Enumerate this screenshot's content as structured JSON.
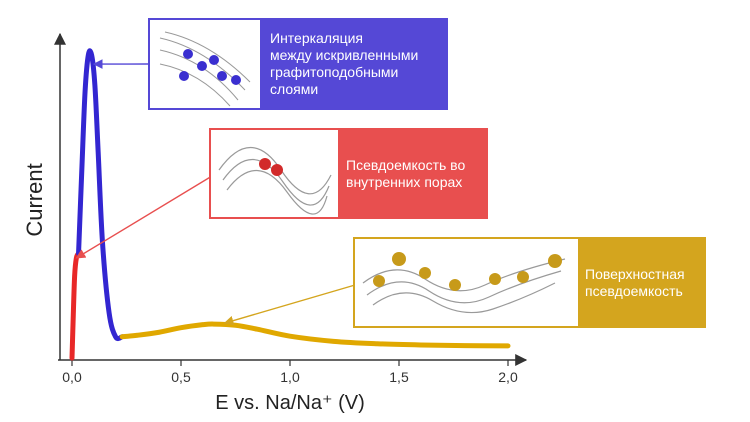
{
  "chart_data": {
    "type": "line",
    "title": "",
    "xlabel": "E vs. Na/Na⁺ (V)",
    "ylabel": "Current",
    "xlim": [
      -0.05,
      2.05
    ],
    "x_ticks": [
      0.0,
      0.5,
      1.0,
      1.5,
      2.0
    ],
    "x_tick_labels": [
      "0,0",
      "0,5",
      "1,0",
      "1,5",
      "2,0"
    ],
    "series": [
      {
        "name": "Псевдоемкость во внутренних порах",
        "color": "#e82828",
        "x": [
          0.0,
          0.005,
          0.012,
          0.02,
          0.03
        ],
        "y": [
          0.0,
          0.12,
          0.27,
          0.33,
          0.345
        ]
      },
      {
        "name": "Интеркаляция между искривленными графитоподобными слоями",
        "color": "#3326d1",
        "x": [
          0.03,
          0.045,
          0.06,
          0.075,
          0.09,
          0.105,
          0.12,
          0.14,
          0.17,
          0.2,
          0.23
        ],
        "y": [
          0.345,
          0.62,
          0.88,
          1.0,
          1.0,
          0.9,
          0.68,
          0.38,
          0.15,
          0.07,
          0.07
        ]
      },
      {
        "name": "Поверхностная псевдоемкость",
        "color": "#e0a800",
        "x": [
          0.23,
          0.3,
          0.4,
          0.5,
          0.6,
          0.65,
          0.75,
          0.85,
          1.0,
          1.2,
          1.4,
          1.6,
          1.8,
          2.0
        ],
        "y": [
          0.07,
          0.075,
          0.085,
          0.1,
          0.11,
          0.112,
          0.108,
          0.095,
          0.072,
          0.055,
          0.047,
          0.043,
          0.041,
          0.04
        ]
      }
    ],
    "annotations": [
      {
        "label": "Интеркаляция\nмежду искривленными\nграфитоподобными\nслоями",
        "color": "#5548d6",
        "points_to": {
          "x": 0.1,
          "y": 0.97
        }
      },
      {
        "label": "Псевдоемкость во\nвнутренних порах",
        "color": "#e84f4f",
        "points_to": {
          "x": 0.02,
          "y": 0.33
        }
      },
      {
        "label": "Поверхностная\nпсевдоемкость",
        "color": "#d4a51e",
        "points_to": {
          "x": 0.7,
          "y": 0.115
        }
      }
    ]
  }
}
